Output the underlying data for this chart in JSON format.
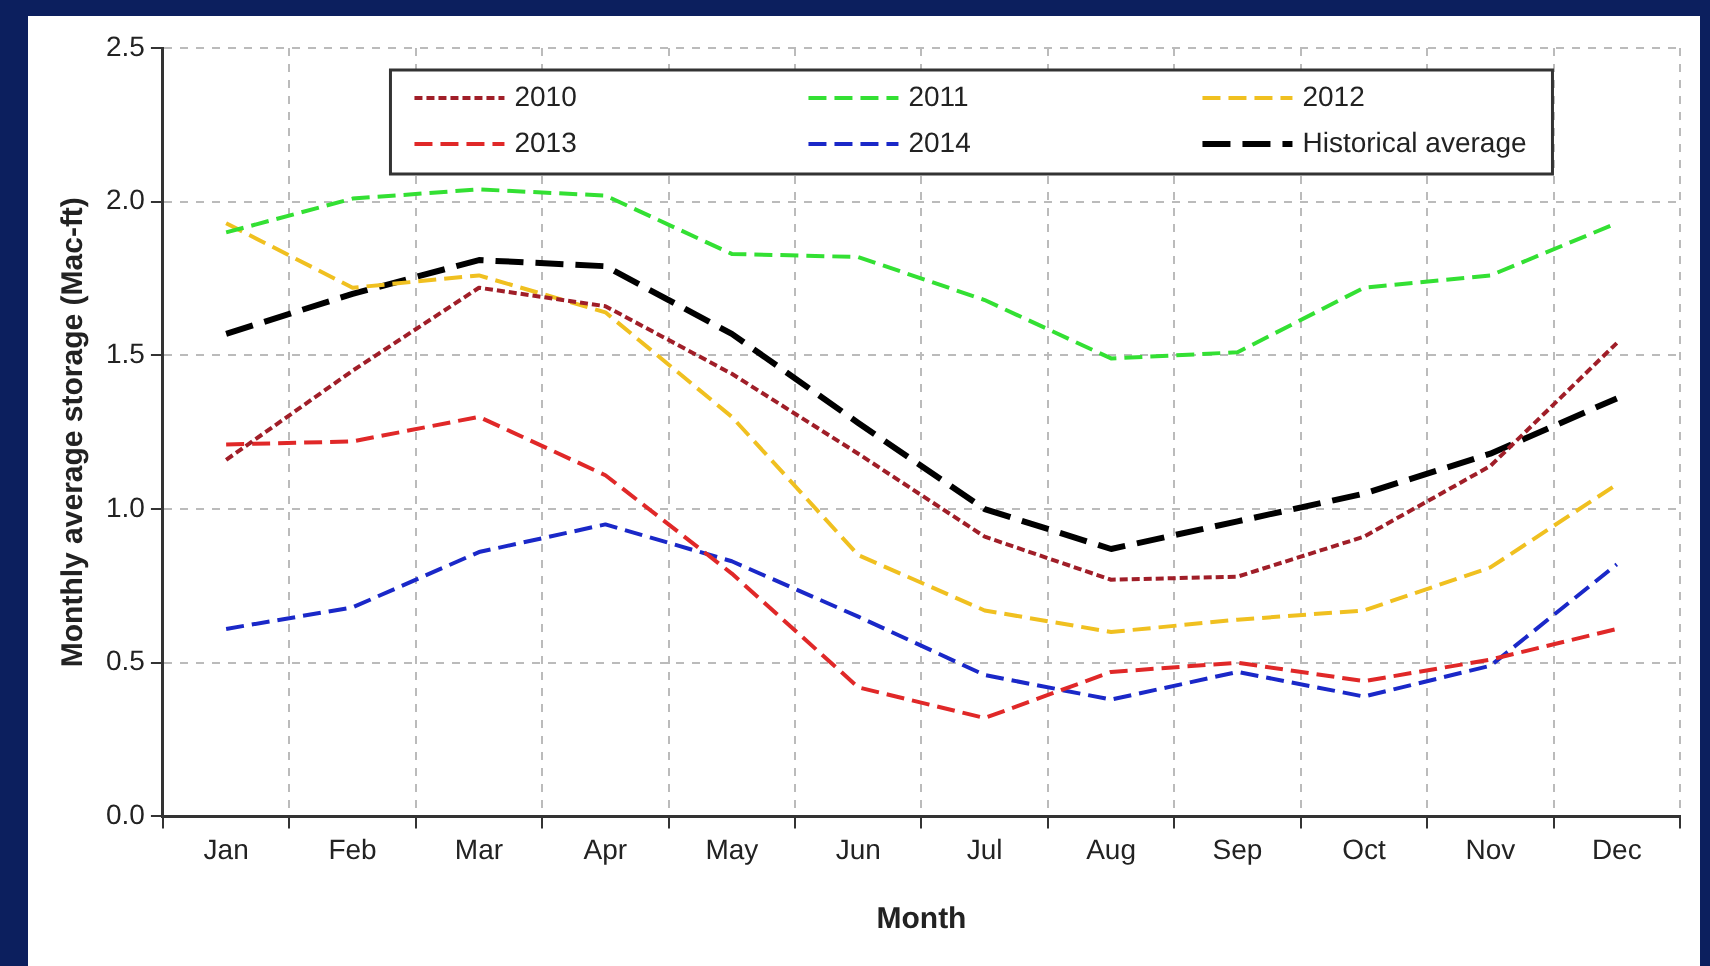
{
  "chart_data": {
    "type": "line",
    "xlabel": "Month",
    "ylabel": "Monthly average storage (Mac-ft)",
    "categories": [
      "Jan",
      "Feb",
      "Mar",
      "Apr",
      "May",
      "Jun",
      "Jul",
      "Aug",
      "Sep",
      "Oct",
      "Nov",
      "Dec"
    ],
    "ylim": [
      0,
      2.5
    ],
    "yticks": [
      {
        "value": 0,
        "label": "0.0"
      },
      {
        "value": 0.5,
        "label": "0.5"
      },
      {
        "value": 1,
        "label": "1.0"
      },
      {
        "value": 1.5,
        "label": "1.5"
      },
      {
        "value": 2,
        "label": "2.0"
      },
      {
        "value": 2.5,
        "label": "2.5"
      }
    ],
    "grid": true,
    "legend": "top",
    "marker": "none",
    "series": [
      {
        "name": "2010",
        "color": "#a01e28",
        "line_style": "dotted",
        "values": [
          1.16,
          1.45,
          1.72,
          1.66,
          1.44,
          1.18,
          0.91,
          0.77,
          0.78,
          0.91,
          1.14,
          1.54
        ]
      },
      {
        "name": "2011",
        "color": "#33e033",
        "line_style": "dashed",
        "values": [
          1.9,
          2.01,
          2.04,
          2.02,
          1.83,
          1.82,
          1.68,
          1.49,
          1.51,
          1.72,
          1.76,
          1.93
        ]
      },
      {
        "name": "2012",
        "color": "#f0c020",
        "line_style": "dashed",
        "values": [
          1.93,
          1.72,
          1.76,
          1.64,
          1.3,
          0.85,
          0.67,
          0.6,
          0.64,
          0.67,
          0.81,
          1.08
        ]
      },
      {
        "name": "2013",
        "color": "#e02828",
        "line_style": "dashed",
        "values": [
          1.21,
          1.22,
          1.3,
          1.11,
          0.79,
          0.42,
          0.32,
          0.47,
          0.5,
          0.44,
          0.51,
          0.61
        ]
      },
      {
        "name": "2014",
        "color": "#1a28c8",
        "line_style": "dashed",
        "values": [
          0.61,
          0.68,
          0.86,
          0.95,
          0.83,
          0.65,
          0.46,
          0.38,
          0.47,
          0.39,
          0.49,
          0.82
        ]
      },
      {
        "name": "Historical average",
        "color": "#000000",
        "line_style": "dashed",
        "values": [
          1.57,
          1.7,
          1.81,
          1.79,
          1.57,
          1.28,
          1.0,
          0.87,
          0.96,
          1.05,
          1.18,
          1.36
        ]
      }
    ]
  }
}
